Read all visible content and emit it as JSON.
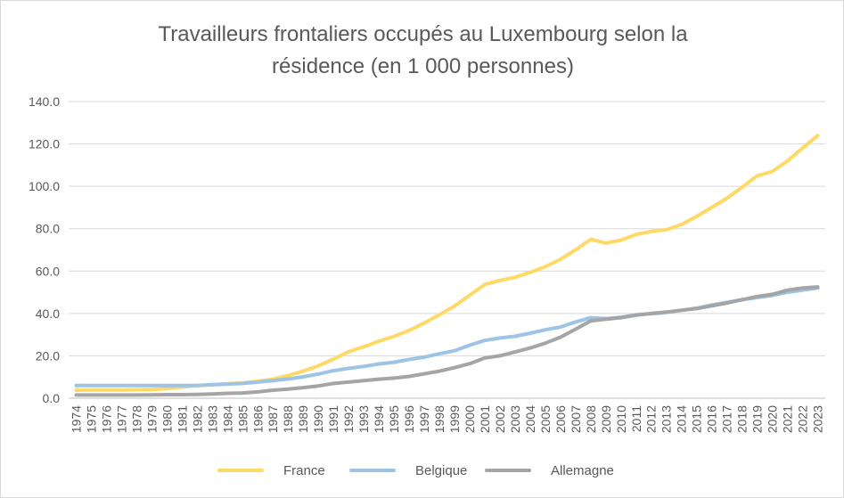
{
  "chart_data": {
    "type": "line",
    "title_line1": "Travailleurs frontaliers occupés au Luxembourg selon la",
    "title_line2": "résidence (en 1 000 personnes)",
    "xlabel": "",
    "ylabel": "",
    "ylim": [
      0,
      140
    ],
    "yticks": [
      "0.0",
      "20.0",
      "40.0",
      "60.0",
      "80.0",
      "100.0",
      "120.0",
      "140.0"
    ],
    "grid": "horizontal",
    "legend_position": "bottom",
    "categories": [
      "1974",
      "1975",
      "1976",
      "1977",
      "1978",
      "1979",
      "1980",
      "1981",
      "1982",
      "1983",
      "1984",
      "1985",
      "1986",
      "1987",
      "1988",
      "1989",
      "1990",
      "1991",
      "1992",
      "1993",
      "1994",
      "1995",
      "1996",
      "1997",
      "1998",
      "1999",
      "2000",
      "2001",
      "2002",
      "2003",
      "2004",
      "2005",
      "2006",
      "2007",
      "2008",
      "2009",
      "2010",
      "2011",
      "2012",
      "2013",
      "2014",
      "2015",
      "2016",
      "2017",
      "2018",
      "2019",
      "2020",
      "2021",
      "2022",
      "2023"
    ],
    "series": [
      {
        "name": "France",
        "color": "#ffd966",
        "values": [
          3.8,
          3.9,
          3.9,
          3.9,
          4.0,
          4.1,
          4.6,
          5.3,
          6.0,
          6.3,
          6.8,
          7.2,
          8.0,
          9.0,
          10.7,
          12.8,
          15.3,
          18.4,
          21.9,
          24.3,
          26.9,
          29.2,
          32.0,
          35.5,
          39.4,
          43.5,
          48.6,
          53.7,
          55.6,
          57.1,
          59.4,
          62.1,
          65.6,
          70.0,
          75.0,
          73.2,
          74.6,
          77.3,
          78.7,
          79.5,
          82.0,
          85.8,
          90.0,
          94.4,
          99.6,
          105.0,
          107.0,
          112.0,
          118.0,
          124.0
        ]
      },
      {
        "name": "Belgique",
        "color": "#9dc3e6",
        "values": [
          6.0,
          6.0,
          6.0,
          6.0,
          6.0,
          6.0,
          6.0,
          6.0,
          6.0,
          6.4,
          6.7,
          7.0,
          7.6,
          8.3,
          9.1,
          10.1,
          11.4,
          13.0,
          14.1,
          15.0,
          16.2,
          17.0,
          18.3,
          19.4,
          21.0,
          22.4,
          25.0,
          27.3,
          28.4,
          29.2,
          30.7,
          32.3,
          33.6,
          36.0,
          38.0,
          37.6,
          38.2,
          39.4,
          39.9,
          40.5,
          41.5,
          42.5,
          44.0,
          45.3,
          46.5,
          47.5,
          48.5,
          50.0,
          51.0,
          52.0
        ]
      },
      {
        "name": "Allemagne",
        "color": "#a5a5a5",
        "values": [
          1.5,
          1.5,
          1.5,
          1.5,
          1.5,
          1.6,
          1.7,
          1.7,
          1.8,
          2.0,
          2.3,
          2.5,
          3.0,
          3.8,
          4.3,
          5.0,
          5.8,
          7.0,
          7.6,
          8.3,
          9.0,
          9.5,
          10.3,
          11.5,
          12.8,
          14.4,
          16.3,
          19.0,
          20.0,
          21.8,
          23.7,
          26.0,
          28.8,
          32.6,
          36.5,
          37.3,
          38.0,
          39.2,
          40.0,
          40.7,
          41.5,
          42.3,
          43.6,
          44.9,
          46.5,
          48.0,
          49.0,
          51.0,
          52.0,
          52.5
        ]
      }
    ]
  }
}
